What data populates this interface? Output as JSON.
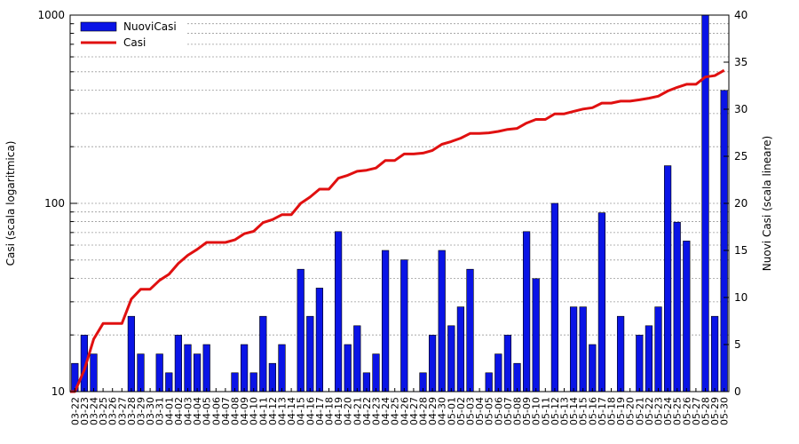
{
  "chart_data": {
    "type": "bar",
    "title": "",
    "ylabel": "Casi (scala logaritmica)",
    "y2label": "Nuovi Casi (scala lineare)",
    "y_log": true,
    "ylim": [
      10,
      1000
    ],
    "y2lim": [
      0,
      40
    ],
    "y_ticks": [
      "10",
      "100",
      "1000"
    ],
    "y2_ticks": [
      "0",
      "5",
      "10",
      "15",
      "20",
      "25",
      "30",
      "35",
      "40"
    ],
    "grid": true,
    "legend_position": "top-left",
    "colors": {
      "bars": "#0a14e6",
      "line": "#e01010"
    },
    "categories": [
      "03-22",
      "03-23",
      "03-24",
      "03-25",
      "03-26",
      "03-27",
      "03-28",
      "03-29",
      "03-30",
      "03-31",
      "04-01",
      "04-02",
      "04-03",
      "04-04",
      "04-05",
      "04-06",
      "04-07",
      "04-08",
      "04-09",
      "04-10",
      "04-11",
      "04-12",
      "04-13",
      "04-14",
      "04-15",
      "04-16",
      "04-17",
      "04-18",
      "04-19",
      "04-20",
      "04-21",
      "04-22",
      "04-23",
      "04-24",
      "04-25",
      "04-26",
      "04-27",
      "04-28",
      "04-29",
      "04-30",
      "05-01",
      "05-02",
      "05-03",
      "05-04",
      "05-05",
      "05-06",
      "05-07",
      "05-08",
      "05-09",
      "05-10",
      "05-11",
      "05-12",
      "05-13",
      "05-14",
      "05-15",
      "05-16",
      "05-17",
      "05-18",
      "05-19",
      "05-20",
      "05-21",
      "05-22",
      "05-23",
      "05-24",
      "05-25",
      "05-26",
      "05-27",
      "05-28",
      "05-29",
      "05-30"
    ],
    "series": [
      {
        "name": "NuoviCasi",
        "type": "bar",
        "axis": "right",
        "values": [
          3,
          6,
          4,
          0,
          0,
          0,
          8,
          4,
          0,
          4,
          2,
          6,
          5,
          4,
          5,
          0,
          0,
          2,
          5,
          2,
          8,
          3,
          5,
          0,
          13,
          8,
          11,
          0,
          17,
          5,
          7,
          2,
          4,
          15,
          0,
          14,
          0,
          2,
          6,
          15,
          7,
          9,
          13,
          0,
          2,
          4,
          6,
          3,
          17,
          12,
          0,
          20,
          0,
          9,
          9,
          5,
          19,
          0,
          8,
          0,
          6,
          7,
          9,
          24,
          18,
          16,
          0,
          40,
          8,
          32
        ]
      },
      {
        "name": "Casi",
        "type": "line",
        "axis": "left",
        "values": [
          10,
          13,
          19,
          23,
          23,
          23,
          31,
          35,
          35,
          39,
          42,
          48,
          53,
          57,
          62,
          62,
          62,
          64,
          69,
          71,
          79,
          82,
          87,
          87,
          100,
          108,
          119,
          119,
          136,
          141,
          148,
          150,
          154,
          169,
          169,
          183,
          183,
          185,
          191,
          206,
          213,
          222,
          235,
          235,
          237,
          241,
          247,
          250,
          267,
          279,
          279,
          299,
          299,
          308,
          317,
          322,
          341,
          341,
          349,
          349,
          355,
          362,
          371,
          395,
          413,
          429,
          429,
          469,
          477,
          509
        ]
      }
    ]
  }
}
